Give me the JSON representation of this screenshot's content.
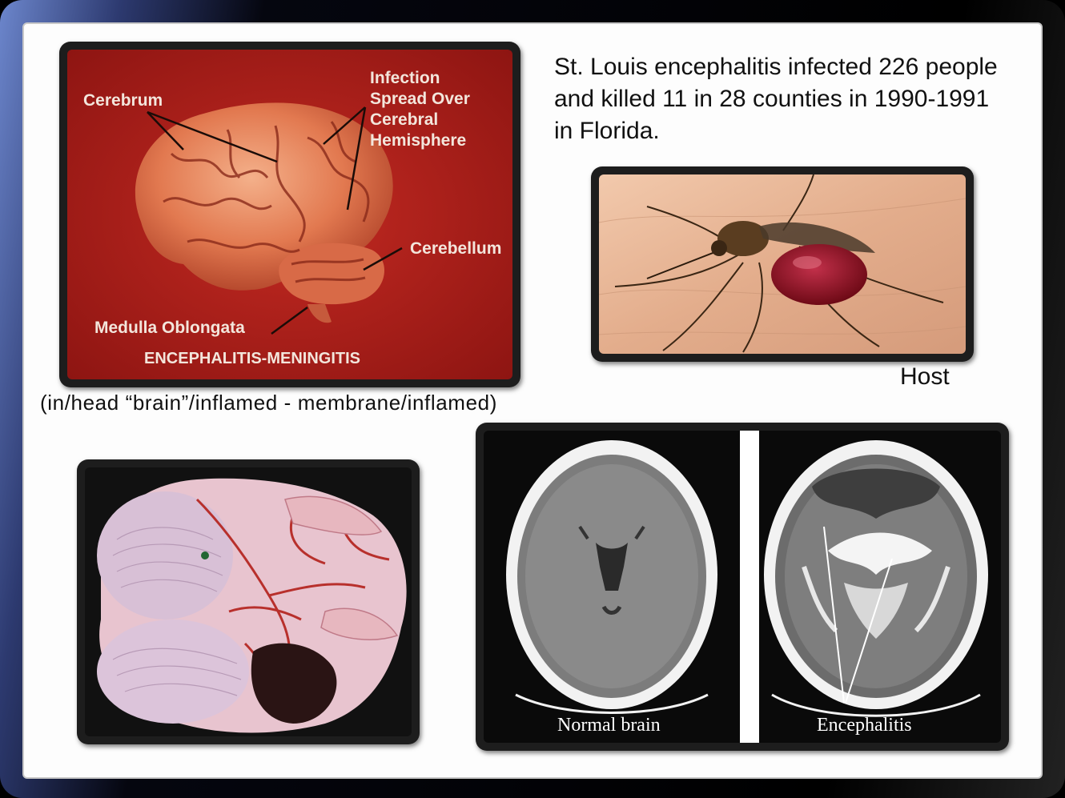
{
  "summary_text": "St. Louis encephalitis infected 226 people and killed 11 in 28 counties in 1990-1991 in Florida.",
  "host_caption": "Host",
  "etymology_caption": "(in/head “brain”/inflamed  -  membrane/inflamed)",
  "brain_slide": {
    "label_cerebrum": "Cerebrum",
    "label_infection_1": "Infection",
    "label_infection_2": "Spread Over",
    "label_infection_3": "Cerebral",
    "label_infection_4": "Hemisphere",
    "label_cerebellum": "Cerebellum",
    "label_medulla": "Medulla Oblongata",
    "label_title": "ENCEPHALITIS-MENINGITIS"
  },
  "ct_scan": {
    "label_normal": "Normal brain",
    "label_encephalitis": "Encephalitis"
  },
  "colors": {
    "slide_background": "#fdfdfd",
    "brain_slide_red": "#b01c18",
    "brain_tissue": "#e9835c",
    "skin": "#e8b496",
    "blood": "#8c1020"
  }
}
